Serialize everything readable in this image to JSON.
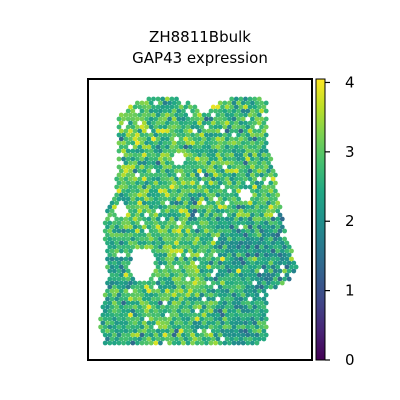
{
  "chart_data": {
    "type": "scatter",
    "title": "ZH8811Bbulk",
    "subtitle": "GAP43 expression",
    "xlabel": "",
    "ylabel": "",
    "grid": false,
    "colormap": "viridis",
    "colorbar": {
      "min": 0,
      "max": 4.05,
      "ticks": [
        0,
        1,
        2,
        3,
        4
      ],
      "tick_labels": [
        "0",
        "1",
        "2",
        "3",
        "4"
      ]
    },
    "value_distribution": {
      "typical_range": [
        1.8,
        3.6
      ],
      "dominant_value": 2.8,
      "outlier_low_value": 0.1,
      "outlier_high_value": 4.0
    }
  }
}
